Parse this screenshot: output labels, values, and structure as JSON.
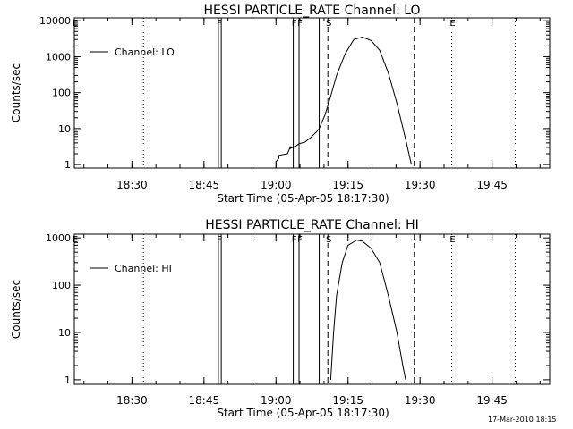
{
  "footer": {
    "timestamp": "17-Mar-2010 18:15"
  },
  "chart_data": [
    {
      "type": "line",
      "title": "HESSI PARTICLE_RATE Channel: LO",
      "xlabel": "Start Time (05-Apr-05 18:17:30)",
      "ylabel": "Counts/sec",
      "yscale": "log",
      "xlim": [
        18.3,
        19.95
      ],
      "ylim": [
        0.8,
        12000
      ],
      "yticks": [
        {
          "v": 1,
          "label": "1"
        },
        {
          "v": 10,
          "label": "10"
        },
        {
          "v": 100,
          "label": "100"
        },
        {
          "v": 1000,
          "label": "1000"
        },
        {
          "v": 10000,
          "label": "10000"
        }
      ],
      "xticks": [
        {
          "v": 18.5,
          "label": "18:30"
        },
        {
          "v": 18.75,
          "label": "18:45"
        },
        {
          "v": 19.0,
          "label": "19:00"
        },
        {
          "v": 19.25,
          "label": "19:15"
        },
        {
          "v": 19.5,
          "label": "19:30"
        },
        {
          "v": 19.75,
          "label": "19:45"
        }
      ],
      "legend": {
        "label": "Channel: LO",
        "position": "top-left"
      },
      "markers": [
        {
          "x": 18.3,
          "label": "E",
          "style": "none"
        },
        {
          "x": 18.8,
          "label": "F",
          "style": "solid"
        },
        {
          "x": 18.81,
          "label": "",
          "style": "solid"
        },
        {
          "x": 19.06,
          "label": "F",
          "style": "solid"
        },
        {
          "x": 19.08,
          "label": "F",
          "style": "solid"
        },
        {
          "x": 19.15,
          "label": "",
          "style": "solid"
        },
        {
          "x": 19.18,
          "label": "S",
          "style": "dashed"
        },
        {
          "x": 19.48,
          "label": "",
          "style": "dashed"
        },
        {
          "x": 18.54,
          "label": "",
          "style": "dotted"
        },
        {
          "x": 19.61,
          "label": "E",
          "style": "dotted"
        },
        {
          "x": 19.83,
          "label": "",
          "style": "dotted"
        }
      ],
      "series": [
        {
          "x": [
            19.0,
            19.0,
            19.01,
            19.01,
            19.04,
            19.05,
            19.05,
            19.07,
            19.08,
            19.1,
            19.12,
            19.14,
            19.15,
            19.17,
            19.19,
            19.21,
            19.24,
            19.27,
            19.3,
            19.33,
            19.36,
            19.39,
            19.42,
            19.45,
            19.47
          ],
          "y": [
            1,
            1.2,
            1.5,
            1.8,
            2,
            3.2,
            2.8,
            3.3,
            3.8,
            4.2,
            5.6,
            8,
            10,
            24,
            80,
            300,
            1200,
            3000,
            3500,
            2800,
            1500,
            350,
            50,
            5,
            1
          ]
        }
      ]
    },
    {
      "type": "line",
      "title": "HESSI PARTICLE_RATE Channel: HI",
      "xlabel": "Start Time (05-Apr-05 18:17:30)",
      "ylabel": "Counts/sec",
      "yscale": "log",
      "xlim": [
        18.3,
        19.95
      ],
      "ylim": [
        0.8,
        1200
      ],
      "yticks": [
        {
          "v": 1,
          "label": "1"
        },
        {
          "v": 10,
          "label": "10"
        },
        {
          "v": 100,
          "label": "100"
        },
        {
          "v": 1000,
          "label": "1000"
        }
      ],
      "xticks": [
        {
          "v": 18.5,
          "label": "18:30"
        },
        {
          "v": 18.75,
          "label": "18:45"
        },
        {
          "v": 19.0,
          "label": "19:00"
        },
        {
          "v": 19.25,
          "label": "19:15"
        },
        {
          "v": 19.5,
          "label": "19:30"
        },
        {
          "v": 19.75,
          "label": "19:45"
        }
      ],
      "legend": {
        "label": "Channel: HI",
        "position": "top-left"
      },
      "markers": [
        {
          "x": 18.3,
          "label": "E",
          "style": "none"
        },
        {
          "x": 18.8,
          "label": "F",
          "style": "solid"
        },
        {
          "x": 18.81,
          "label": "",
          "style": "solid"
        },
        {
          "x": 19.06,
          "label": "F",
          "style": "solid"
        },
        {
          "x": 19.08,
          "label": "F",
          "style": "solid"
        },
        {
          "x": 19.15,
          "label": "",
          "style": "solid"
        },
        {
          "x": 19.18,
          "label": "S",
          "style": "dashed"
        },
        {
          "x": 19.48,
          "label": "",
          "style": "dashed"
        },
        {
          "x": 18.54,
          "label": "",
          "style": "dotted"
        },
        {
          "x": 19.61,
          "label": "E",
          "style": "dotted"
        },
        {
          "x": 19.83,
          "label": "",
          "style": "dotted"
        }
      ],
      "series": [
        {
          "x": [
            19.19,
            19.2,
            19.21,
            19.23,
            19.25,
            19.28,
            19.3,
            19.33,
            19.36,
            19.39,
            19.42,
            19.44,
            19.45
          ],
          "y": [
            1,
            10,
            60,
            300,
            700,
            900,
            850,
            600,
            300,
            60,
            10,
            2,
            1
          ]
        }
      ]
    }
  ]
}
